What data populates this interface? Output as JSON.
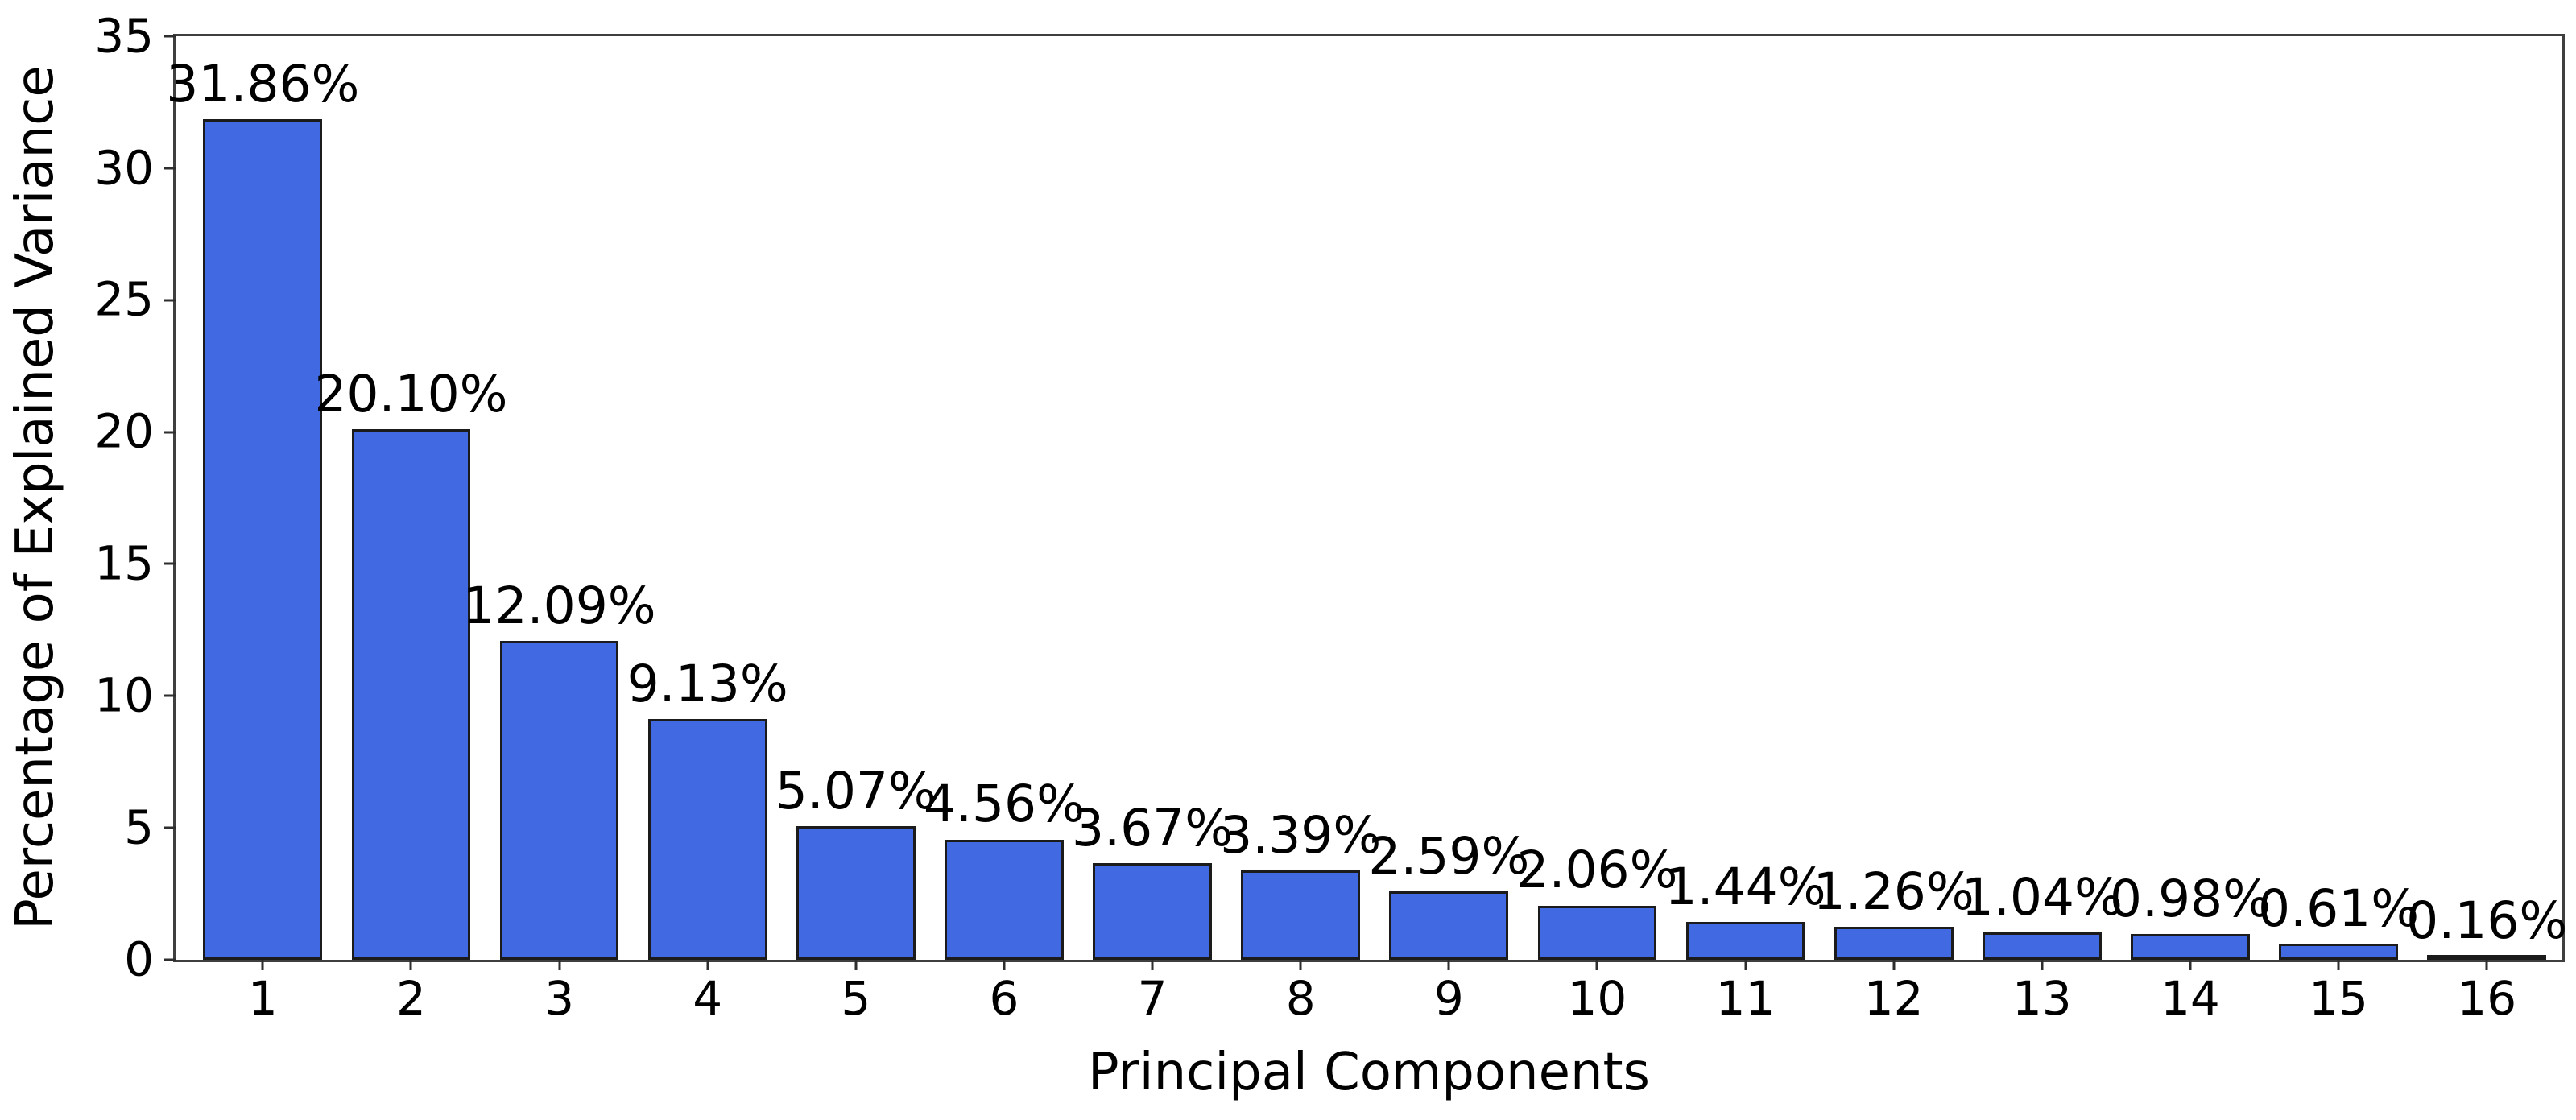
{
  "chart_data": {
    "type": "bar",
    "title": "",
    "xlabel": "Principal Components",
    "ylabel": "Percentage of Explained Variance",
    "categories": [
      "1",
      "2",
      "3",
      "4",
      "5",
      "6",
      "7",
      "8",
      "9",
      "10",
      "11",
      "12",
      "13",
      "14",
      "15",
      "16"
    ],
    "values": [
      31.86,
      20.1,
      12.09,
      9.13,
      5.07,
      4.56,
      3.67,
      3.39,
      2.59,
      2.06,
      1.44,
      1.26,
      1.04,
      0.98,
      0.61,
      0.16
    ],
    "bar_labels": [
      "31.86%",
      "20.10%",
      "12.09%",
      "9.13%",
      "5.07%",
      "4.56%",
      "3.67%",
      "3.39%",
      "2.59%",
      "2.06%",
      "1.44%",
      "1.26%",
      "1.04%",
      "0.98%",
      "0.61%",
      "0.16%"
    ],
    "ylim": [
      0,
      35
    ],
    "yticks": [
      0,
      5,
      10,
      15,
      20,
      25,
      30,
      35
    ],
    "grid": false,
    "legend_position": "none",
    "colors": {
      "bar_fill": "#4169E1",
      "bar_edge": "#1b1b1b",
      "axis": "#3f3f3f",
      "tick": "#2e2e2e",
      "text": "#000000",
      "background": "#ffffff"
    }
  }
}
